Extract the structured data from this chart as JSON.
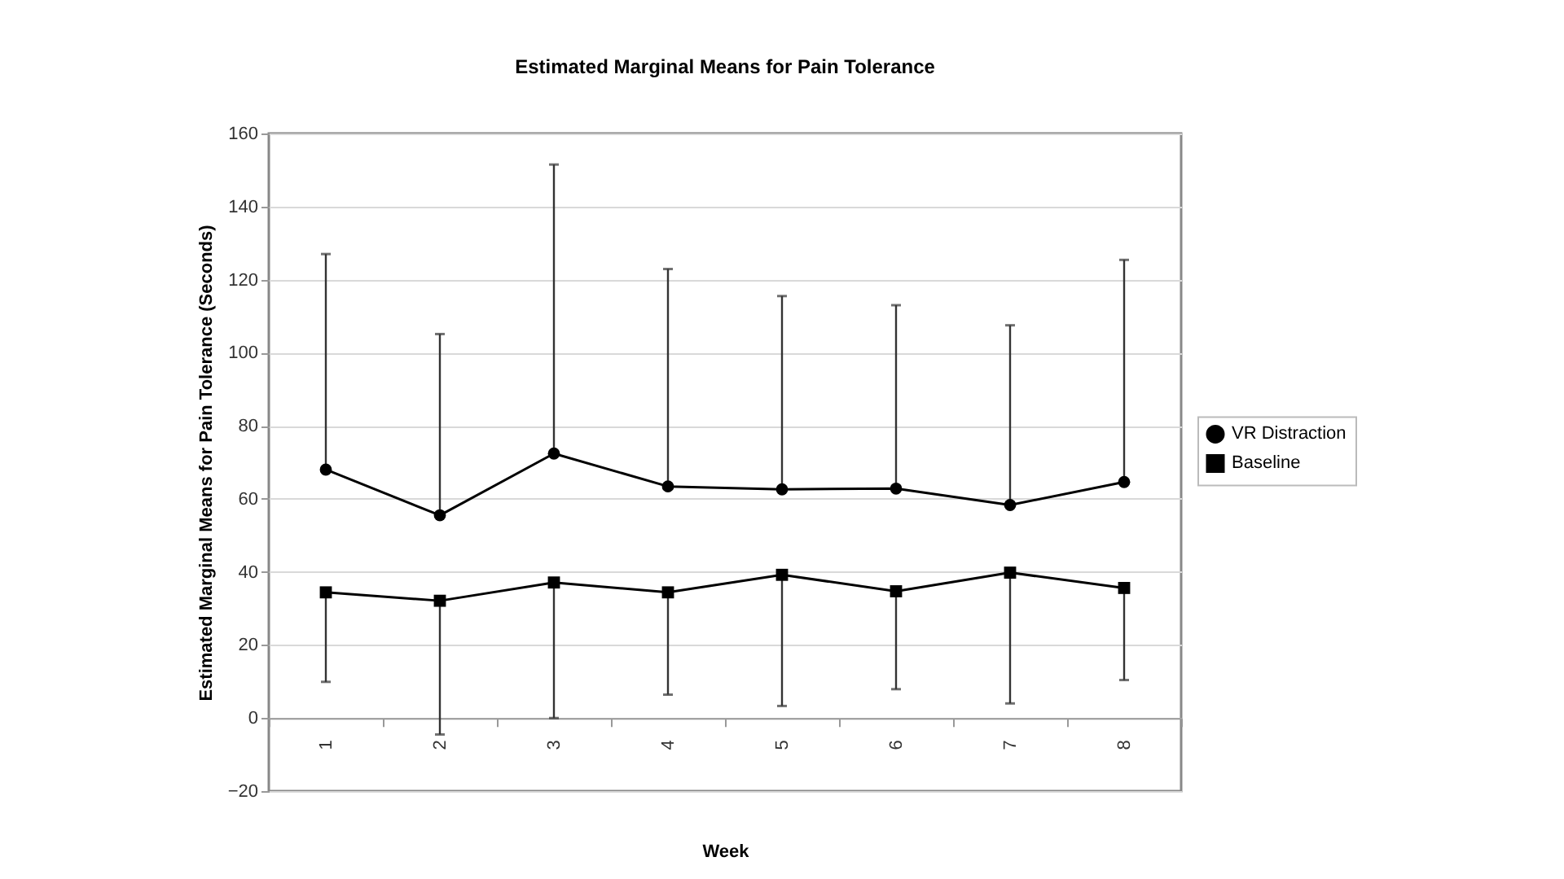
{
  "chart_data": {
    "type": "line",
    "title": "Estimated Marginal Means for Pain Tolerance",
    "xlabel": "Week",
    "ylabel": "Estimated Marginal Means for Pain Tolerance (Seconds)",
    "categories": [
      "1",
      "2",
      "3",
      "4",
      "5",
      "6",
      "7",
      "8"
    ],
    "series": [
      {
        "name": "VR Distraction",
        "color": "#000000",
        "marker": "circle",
        "values": [
          68.0,
          55.5,
          72.4,
          63.4,
          62.6,
          62.8,
          58.3,
          64.6
        ],
        "errors": [
          [
            68.0,
            127.0
          ],
          [
            55.5,
            105.1
          ],
          [
            72.4,
            151.5
          ],
          [
            63.4,
            122.9
          ],
          [
            62.6,
            115.5
          ],
          [
            62.8,
            113.0
          ],
          [
            58.3,
            107.5
          ],
          [
            64.6,
            125.4
          ]
        ]
      },
      {
        "name": "Baseline",
        "color": "#000000",
        "marker": "square",
        "values": [
          34.4,
          32.1,
          37.1,
          34.4,
          39.2,
          34.7,
          39.8,
          35.6
        ],
        "errors": [
          [
            9.9,
            34.4
          ],
          [
            -4.5,
            32.1
          ],
          [
            0,
            37.1
          ],
          [
            6.4,
            34.4
          ],
          [
            3.3,
            39.2
          ],
          [
            7.9,
            34.7
          ],
          [
            4.0,
            39.8
          ],
          [
            10.4,
            35.6
          ]
        ]
      }
    ],
    "ylim": [
      -20,
      160
    ],
    "yticks": [
      -20,
      0,
      20,
      40,
      60,
      80,
      100,
      120,
      140,
      160
    ],
    "grid": "y",
    "legend": "right",
    "line_style": "solid"
  }
}
